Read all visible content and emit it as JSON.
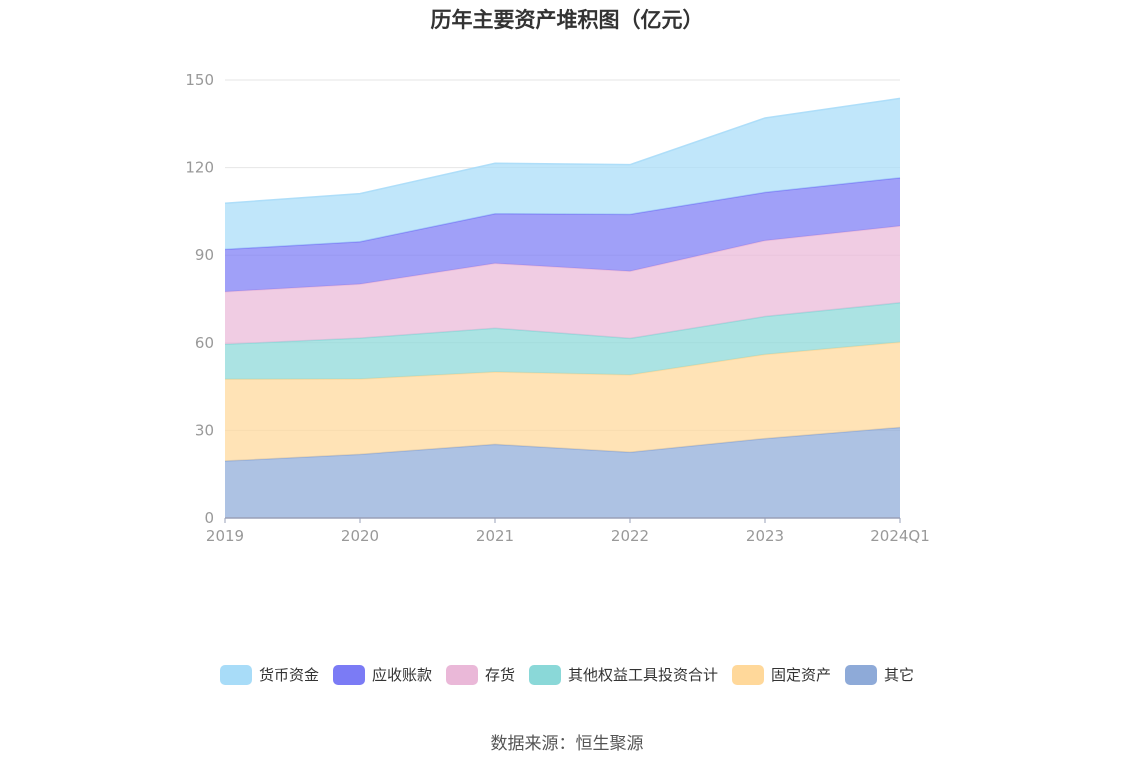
{
  "chart_data": {
    "type": "area",
    "stacked": true,
    "title": "历年主要资产堆积图（亿元）",
    "categories": [
      "2019",
      "2020",
      "2021",
      "2022",
      "2023",
      "2024Q1"
    ],
    "ylim": [
      0,
      150
    ],
    "yticks": [
      0,
      30,
      60,
      90,
      120,
      150
    ],
    "grid": true,
    "legend_position": "bottom",
    "series": [
      {
        "name": "其它",
        "color": "#8eaad8",
        "values": [
          19.5,
          21.8,
          25.2,
          22.5,
          27.2,
          31.0
        ]
      },
      {
        "name": "固定资产",
        "color": "#ffd89a",
        "values": [
          28.0,
          25.8,
          24.8,
          26.5,
          28.8,
          29.2
        ]
      },
      {
        "name": "其他权益工具投资合计",
        "color": "#8ad8d8",
        "values": [
          12.0,
          14.0,
          15.0,
          12.5,
          13.0,
          13.5
        ]
      },
      {
        "name": "存货",
        "color": "#eab8d8",
        "values": [
          18.0,
          18.5,
          22.2,
          23.0,
          26.0,
          26.3
        ]
      },
      {
        "name": "应收账款",
        "color": "#7b7bf5",
        "values": [
          14.5,
          14.5,
          17.0,
          19.5,
          16.5,
          16.5
        ]
      },
      {
        "name": "货币资金",
        "color": "#a8dcf8",
        "values": [
          15.8,
          16.5,
          17.3,
          17.0,
          25.5,
          27.2
        ]
      }
    ],
    "legend_order": [
      "货币资金",
      "应收账款",
      "存货",
      "其他权益工具投资合计",
      "固定资产",
      "其它"
    ]
  },
  "source_text": "数据来源：恒生聚源"
}
